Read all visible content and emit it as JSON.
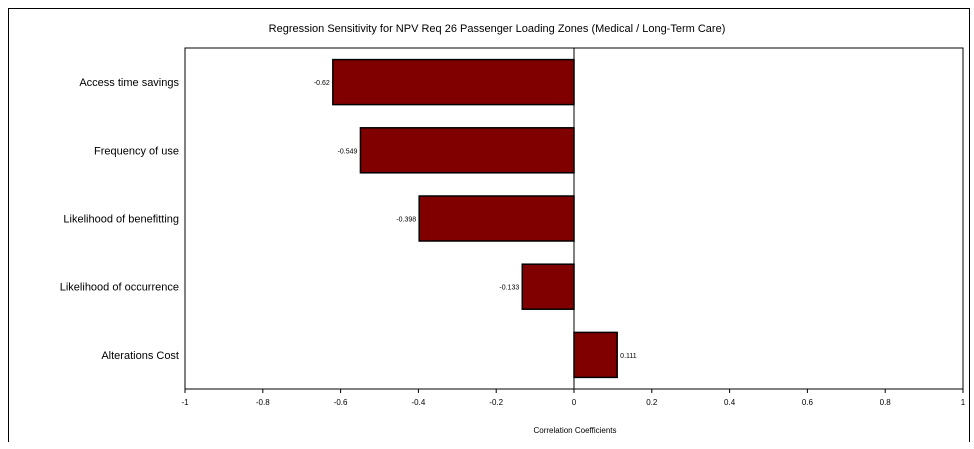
{
  "chart_data": {
    "type": "bar",
    "orientation": "horizontal",
    "title": "Regression Sensitivity for NPV Req 26 Passenger Loading Zones (Medical / Long-Term Care)",
    "xlabel": "Correlation Coefficients",
    "ylabel": "",
    "categories": [
      "Access time savings",
      "Frequency of use",
      "Likelihood of benefitting",
      "Likelihood of occurrence",
      "Alterations Cost"
    ],
    "values": [
      -0.62,
      -0.549,
      -0.398,
      -0.133,
      0.111
    ],
    "data_labels": [
      "-0.62",
      "-0.549",
      "-0.398",
      "-0.133",
      "0.111"
    ],
    "xlim": [
      -1,
      1
    ],
    "x_ticks": [
      "-1",
      "-0.8",
      "-0.6",
      "-0.4",
      "-0.2",
      "0",
      "0.2",
      "0.4",
      "0.6",
      "0.8",
      "1"
    ],
    "x_tick_values": [
      -1,
      -0.8,
      -0.6,
      -0.4,
      -0.2,
      0,
      0.2,
      0.4,
      0.6,
      0.8,
      1
    ],
    "grid": false,
    "legend": "none",
    "colors": {
      "bar_fill": "#800000",
      "bar_stroke": "#000000"
    }
  }
}
